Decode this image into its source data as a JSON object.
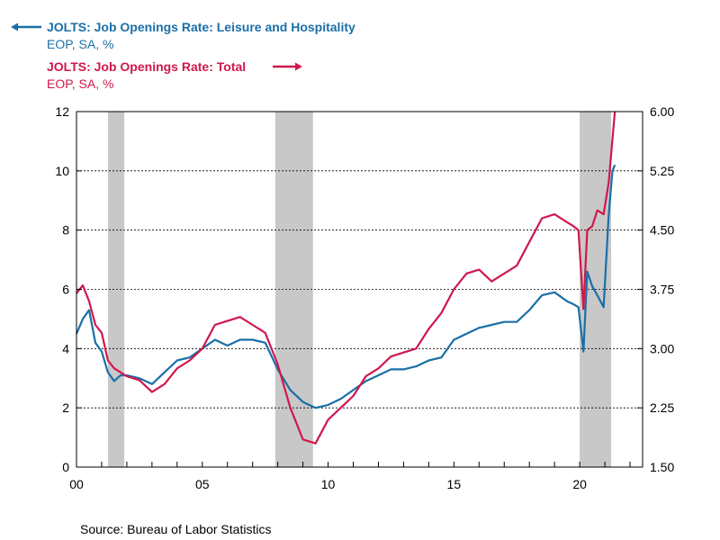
{
  "chart_data": {
    "type": "line",
    "title": "",
    "legend": [
      {
        "title": "JOLTS: Job Openings Rate: Leisure and Hospitality",
        "subtitle": "EOP, SA, %",
        "axis": "left",
        "color": "#1a6fa8"
      },
      {
        "title": "JOLTS: Job Openings Rate: Total",
        "subtitle": "EOP, SA, %",
        "axis": "right",
        "color": "#d0184c"
      }
    ],
    "legend_placement": "top-left",
    "x_axis": {
      "tick_labels": [
        "00",
        "05",
        "10",
        "15",
        "20"
      ],
      "range": [
        2000.0,
        2022.5
      ]
    },
    "y_left": {
      "range": [
        0,
        12
      ],
      "tick_labels": [
        "0",
        "2",
        "4",
        "6",
        "8",
        "10",
        "12"
      ]
    },
    "y_right": {
      "range": [
        1.5,
        6.0
      ],
      "tick_labels": [
        "1.50",
        "2.25",
        "3.00",
        "3.75",
        "4.50",
        "5.25",
        "6.00"
      ]
    },
    "grid": "horizontal dashed",
    "recessions": [
      [
        2001.25,
        2001.9
      ],
      [
        2007.9,
        2009.4
      ],
      [
        2020.0,
        2021.25
      ]
    ],
    "series": [
      {
        "name": "JOLTS: Job Openings Rate: Leisure and Hospitality",
        "axis": "left",
        "color": "#1a6fa8",
        "x": [
          2000.0,
          2000.25,
          2000.5,
          2000.75,
          2001.0,
          2001.25,
          2001.5,
          2001.75,
          2002.0,
          2002.5,
          2003.0,
          2003.5,
          2004.0,
          2004.5,
          2005.0,
          2005.5,
          2006.0,
          2006.5,
          2007.0,
          2007.5,
          2008.0,
          2008.5,
          2009.0,
          2009.5,
          2010.0,
          2010.5,
          2011.0,
          2011.5,
          2012.0,
          2012.5,
          2013.0,
          2013.5,
          2014.0,
          2014.5,
          2015.0,
          2015.5,
          2016.0,
          2016.5,
          2017.0,
          2017.5,
          2018.0,
          2018.5,
          2019.0,
          2019.5,
          2019.75,
          2019.95,
          2020.15,
          2020.3,
          2020.5,
          2020.7,
          2020.95,
          2021.15,
          2021.3,
          2021.4
        ],
        "values": [
          4.5,
          5.0,
          5.3,
          4.2,
          3.9,
          3.2,
          2.9,
          3.1,
          3.1,
          3.0,
          2.8,
          3.2,
          3.6,
          3.7,
          4.0,
          4.3,
          4.1,
          4.3,
          4.3,
          4.2,
          3.3,
          2.6,
          2.2,
          2.0,
          2.1,
          2.3,
          2.6,
          2.9,
          3.1,
          3.3,
          3.3,
          3.4,
          3.6,
          3.7,
          4.3,
          4.5,
          4.7,
          4.8,
          4.9,
          4.9,
          5.3,
          5.8,
          5.9,
          5.6,
          5.5,
          5.4,
          3.9,
          6.6,
          6.1,
          5.8,
          5.4,
          8.5,
          10.0,
          10.2
        ]
      },
      {
        "name": "JOLTS: Job Openings Rate: Total",
        "axis": "right",
        "color": "#d0184c",
        "x": [
          2000.0,
          2000.25,
          2000.5,
          2000.75,
          2001.0,
          2001.25,
          2001.5,
          2001.75,
          2002.0,
          2002.5,
          2003.0,
          2003.5,
          2004.0,
          2004.5,
          2005.0,
          2005.5,
          2006.0,
          2006.5,
          2007.0,
          2007.5,
          2008.0,
          2008.5,
          2009.0,
          2009.5,
          2010.0,
          2010.5,
          2011.0,
          2011.5,
          2012.0,
          2012.5,
          2013.0,
          2013.5,
          2014.0,
          2014.5,
          2015.0,
          2015.5,
          2016.0,
          2016.5,
          2017.0,
          2017.5,
          2018.0,
          2018.5,
          2019.0,
          2019.5,
          2019.75,
          2019.95,
          2020.15,
          2020.3,
          2020.5,
          2020.7,
          2020.95,
          2021.15,
          2021.3,
          2021.4
        ],
        "values": [
          3.7,
          3.8,
          3.6,
          3.3,
          3.2,
          2.85,
          2.75,
          2.7,
          2.65,
          2.6,
          2.45,
          2.55,
          2.75,
          2.85,
          3.0,
          3.3,
          3.35,
          3.4,
          3.3,
          3.2,
          2.8,
          2.25,
          1.85,
          1.8,
          2.1,
          2.25,
          2.4,
          2.65,
          2.75,
          2.9,
          2.95,
          3.0,
          3.25,
          3.45,
          3.75,
          3.95,
          4.0,
          3.85,
          3.95,
          4.05,
          4.35,
          4.65,
          4.7,
          4.6,
          4.55,
          4.5,
          3.5,
          4.5,
          4.55,
          4.75,
          4.7,
          5.1,
          5.65,
          6.0
        ]
      }
    ]
  },
  "source_text": "Source:  Bureau of Labor Statistics"
}
